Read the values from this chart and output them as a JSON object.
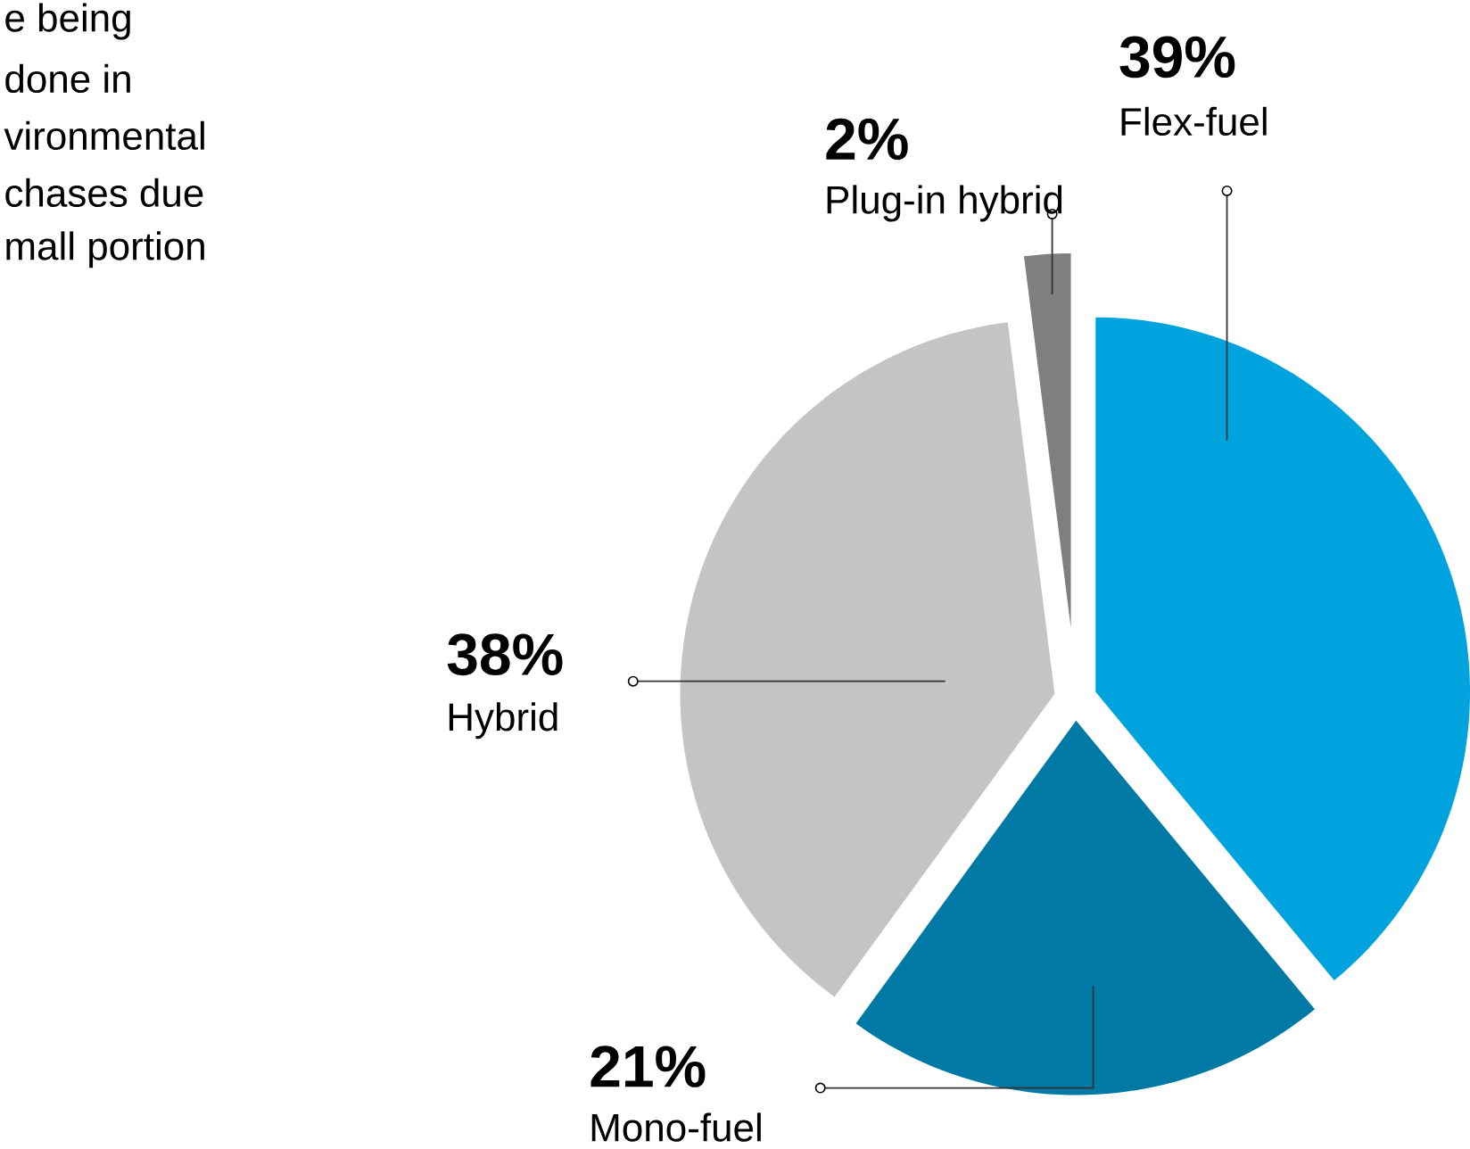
{
  "chart_data": {
    "type": "pie",
    "categories": [
      "Flex-fuel",
      "Mono-fuel",
      "Hybrid",
      "Plug-in hybrid"
    ],
    "values": [
      39,
      21,
      38,
      2
    ],
    "value_labels": [
      "39%",
      "21%",
      "38%",
      "2%"
    ],
    "colors": [
      "#00a3dd",
      "#0079a5",
      "#c4c4c4",
      "#7f7f7f"
    ],
    "annotations": [
      "e being",
      "done in",
      "vironmental",
      "chases due",
      "mall portion"
    ]
  }
}
